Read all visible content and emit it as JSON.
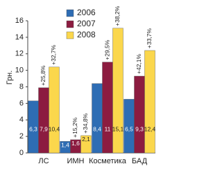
{
  "chart_data": {
    "type": "bar",
    "y_label": "Грн.",
    "categories": [
      "ЛС",
      "ИМН",
      "Косметика",
      "БАД"
    ],
    "series": [
      {
        "name": "2006",
        "color": "#2e6db4",
        "values": [
          6.3,
          1.4,
          8.4,
          6.5
        ],
        "value_labels": [
          "6,3",
          "1,4",
          "8,4",
          "6,5"
        ]
      },
      {
        "name": "2007",
        "color": "#8c1c40",
        "values": [
          7.9,
          1.6,
          11,
          9.3
        ],
        "value_labels": [
          "7,9",
          "1,6",
          "11",
          "9,3"
        ],
        "annotations": [
          "+25,8%",
          "+15,2%",
          "+29,5%",
          "+42,1%"
        ]
      },
      {
        "name": "2008",
        "color": "#fbd74c",
        "values": [
          10.4,
          2.1,
          15.1,
          12.4
        ],
        "value_labels": [
          "10,4",
          "2,1",
          "15,1",
          "12,4"
        ],
        "annotations": [
          "+32,7%",
          "+34,8%",
          "+38,2%",
          "+33,7%"
        ]
      }
    ],
    "ylim": [
      0,
      16
    ],
    "yticks": [
      0,
      2,
      4,
      6,
      8,
      10,
      12,
      14,
      16
    ],
    "legend": "top-left"
  }
}
